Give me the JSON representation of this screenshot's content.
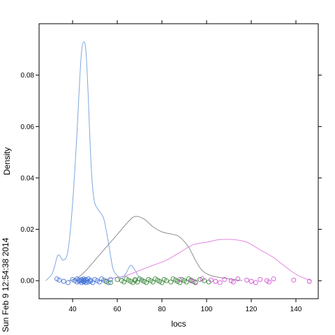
{
  "chart_data": {
    "type": "line",
    "title": "",
    "xlabel": "locs",
    "ylabel": "Density",
    "xlim": [
      25,
      150
    ],
    "ylim": [
      -0.007,
      0.1
    ],
    "grid": false,
    "x_ticks": [
      40,
      60,
      80,
      100,
      120,
      140
    ],
    "y_ticks": [
      0.0,
      0.02,
      0.04,
      0.06,
      0.08
    ],
    "y_tick_labels": [
      "0.00",
      "0.02",
      "0.04",
      "0.06",
      "0.08"
    ],
    "series": [
      {
        "color": "#7ea7e0",
        "points": [
          [
            28,
            0.0
          ],
          [
            31,
            0.003
          ],
          [
            33,
            0.009
          ],
          [
            34,
            0.01
          ],
          [
            36,
            0.008
          ],
          [
            38,
            0.012
          ],
          [
            40,
            0.03
          ],
          [
            42,
            0.058
          ],
          [
            43,
            0.075
          ],
          [
            44,
            0.089
          ],
          [
            45,
            0.093
          ],
          [
            46,
            0.089
          ],
          [
            47,
            0.072
          ],
          [
            48,
            0.05
          ],
          [
            49,
            0.036
          ],
          [
            50,
            0.03
          ],
          [
            52,
            0.027
          ],
          [
            54,
            0.024
          ],
          [
            56,
            0.015
          ],
          [
            58,
            0.005
          ],
          [
            60,
            0.002
          ],
          [
            62,
            0.001
          ],
          [
            64,
            0.003
          ],
          [
            66,
            0.006
          ],
          [
            68,
            0.004
          ],
          [
            70,
            0.001
          ],
          [
            72,
            0.0
          ]
        ]
      },
      {
        "color": "#909090",
        "points": [
          [
            38,
            0.0
          ],
          [
            42,
            0.001
          ],
          [
            46,
            0.004
          ],
          [
            50,
            0.008
          ],
          [
            55,
            0.013
          ],
          [
            60,
            0.018
          ],
          [
            65,
            0.023
          ],
          [
            68,
            0.025
          ],
          [
            72,
            0.024
          ],
          [
            76,
            0.021
          ],
          [
            80,
            0.019
          ],
          [
            85,
            0.018
          ],
          [
            88,
            0.017
          ],
          [
            92,
            0.013
          ],
          [
            95,
            0.008
          ],
          [
            98,
            0.004
          ],
          [
            102,
            0.002
          ],
          [
            108,
            0.001
          ],
          [
            116,
            0.0
          ]
        ]
      },
      {
        "color": "#e187e1",
        "points": [
          [
            52,
            0.0
          ],
          [
            58,
            0.001
          ],
          [
            64,
            0.002
          ],
          [
            70,
            0.004
          ],
          [
            76,
            0.006
          ],
          [
            82,
            0.008
          ],
          [
            88,
            0.011
          ],
          [
            94,
            0.014
          ],
          [
            100,
            0.015
          ],
          [
            106,
            0.016
          ],
          [
            112,
            0.016
          ],
          [
            118,
            0.015
          ],
          [
            124,
            0.012
          ],
          [
            130,
            0.009
          ],
          [
            136,
            0.005
          ],
          [
            141,
            0.002
          ],
          [
            147,
            0.0
          ]
        ]
      }
    ],
    "rug": [
      {
        "color": "#4a78d8",
        "x": [
          33,
          34,
          36,
          38,
          40,
          41,
          42,
          42,
          43,
          43,
          44,
          44,
          44,
          45,
          45,
          45,
          45,
          46,
          46,
          46,
          47,
          47,
          48,
          48,
          49,
          50,
          51,
          52,
          53,
          54,
          55,
          56,
          57
        ]
      },
      {
        "color": "#3d8a3d",
        "x": [
          55,
          57,
          60,
          62,
          63,
          64,
          65,
          66,
          67,
          68,
          68,
          69,
          70,
          71,
          72,
          73,
          74,
          75,
          76,
          77,
          78,
          79,
          80,
          81,
          82,
          84,
          85,
          86,
          87,
          88,
          89,
          90,
          91,
          92,
          93,
          94,
          95,
          97,
          99,
          101
        ]
      },
      {
        "color": "#d455d4",
        "x": [
          88,
          93,
          95,
          98,
          102,
          104,
          106,
          108,
          111,
          112,
          114,
          118,
          120,
          122,
          124,
          127,
          128,
          130,
          139,
          146
        ]
      }
    ]
  },
  "timestamp": "Sun Feb  9 12:54:38 2014"
}
